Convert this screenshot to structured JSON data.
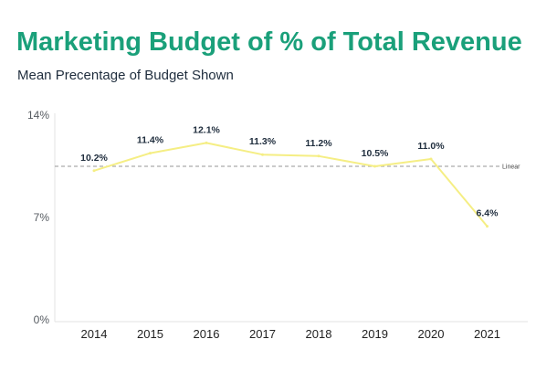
{
  "title": "Marketing Budget of % of Total Revenue",
  "subtitle": "Mean Precentage of Budget Shown",
  "chart_data": {
    "type": "line",
    "title": "Marketing Budget of % of Total Revenue",
    "subtitle": "Mean Precentage of Budget Shown",
    "categories": [
      "2014",
      "2015",
      "2016",
      "2017",
      "2018",
      "2019",
      "2020",
      "2021"
    ],
    "series": [
      {
        "values": [
          10.2,
          11.4,
          12.1,
          11.3,
          11.2,
          10.5,
          11.0,
          6.4
        ],
        "labels": [
          "10.2%",
          "11.4%",
          "12.1%",
          "11.3%",
          "11.2%",
          "10.5%",
          "11.0%",
          "6.4%"
        ],
        "color": "#f5ee84"
      }
    ],
    "reference_line": {
      "label": "Linear",
      "value": 10.5,
      "color": "#aaaaaa"
    },
    "y_ticks": [
      "0%",
      "7%",
      "14%"
    ],
    "ylim": [
      0,
      14
    ],
    "grid": false,
    "legend": "none"
  }
}
